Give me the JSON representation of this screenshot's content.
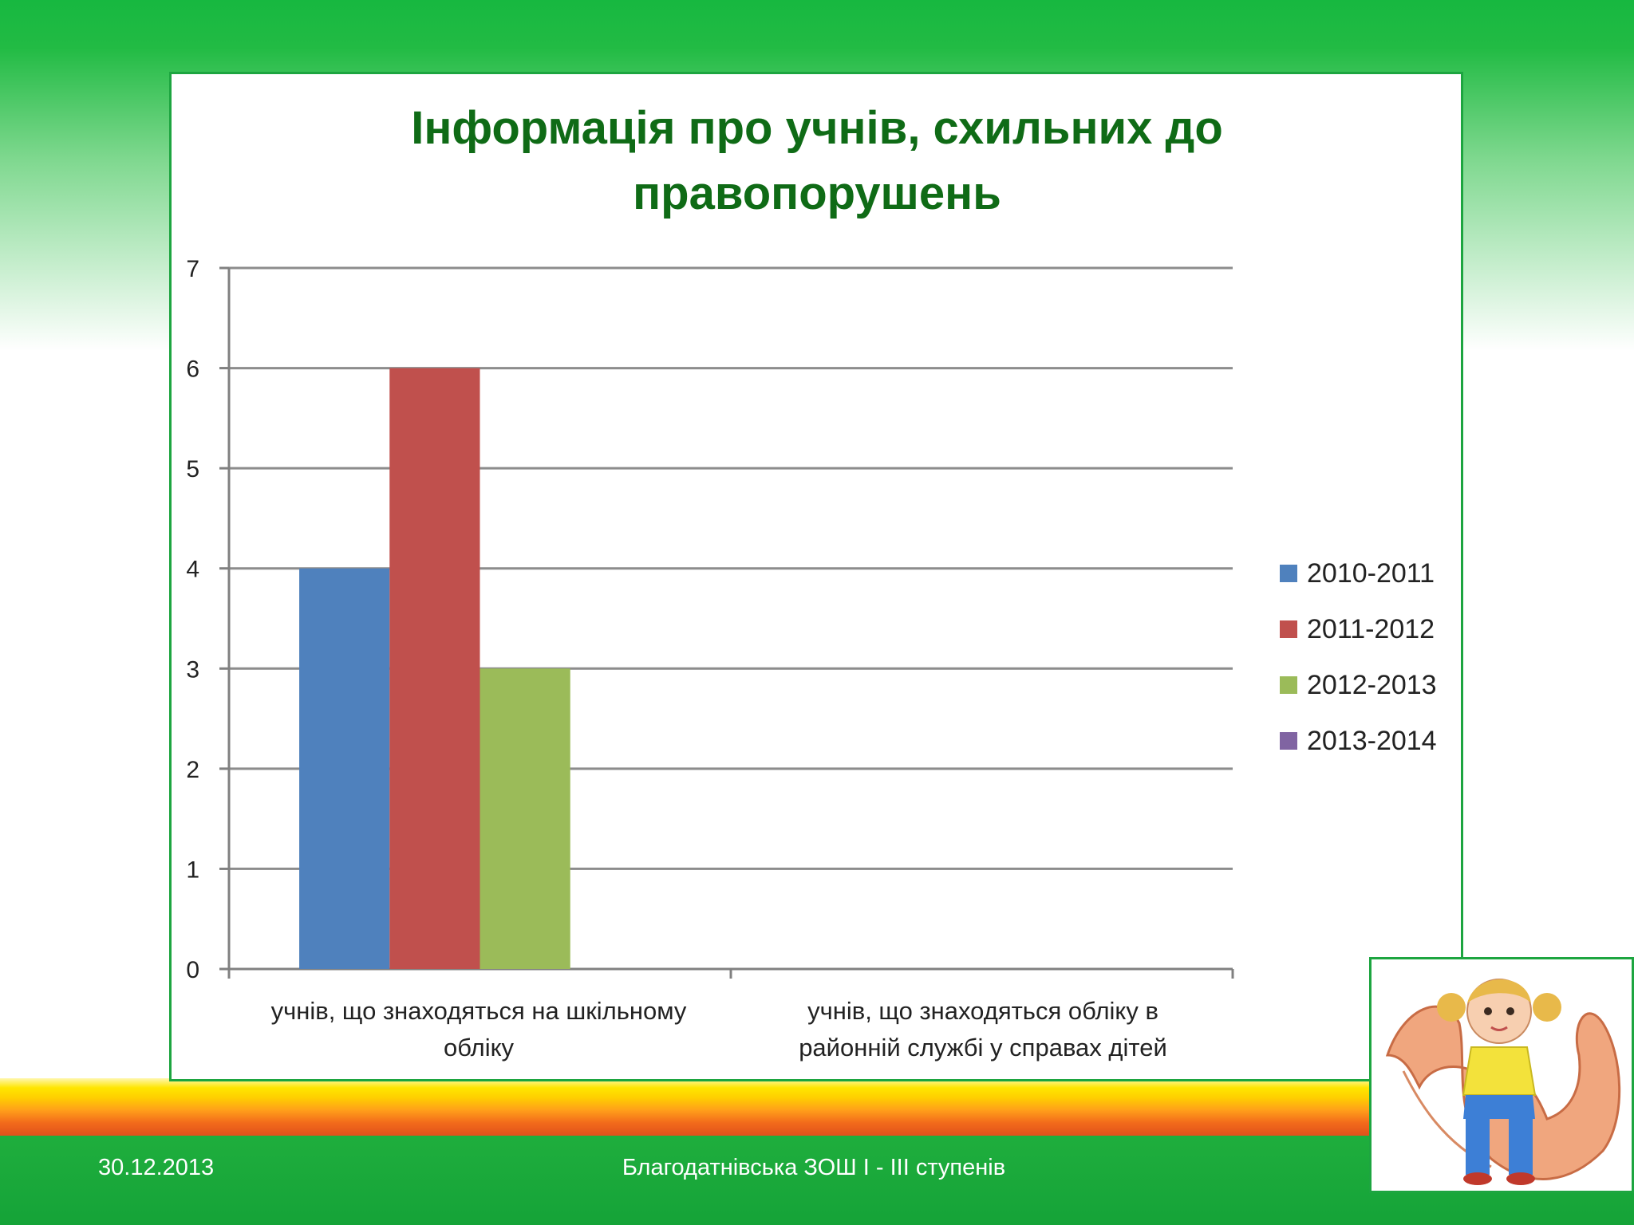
{
  "footer": {
    "date": "30.12.2013",
    "school": "Благодатнівська ЗОШ I - III ступенів"
  },
  "chart_data": {
    "type": "bar",
    "title": "Інформація про учнів, схильних до правопорушень",
    "title_lines": [
      "Інформація про учнів, схильних до",
      "правопорушень"
    ],
    "categories": [
      "учнів, що знаходяться на шкільному обліку",
      "учнів, що знаходяться  обліку в районній службі у справах дітей"
    ],
    "category_lines": [
      [
        "учнів, що знаходяться на шкільному",
        "обліку"
      ],
      [
        "учнів, що знаходяться  обліку в",
        "районній службі у справах дітей"
      ]
    ],
    "series": [
      {
        "name": "2010-2011",
        "color": "#4f81bd",
        "values": [
          4,
          0
        ]
      },
      {
        "name": "2011-2012",
        "color": "#c0504d",
        "values": [
          6,
          0
        ]
      },
      {
        "name": "2012-2013",
        "color": "#9bbb59",
        "values": [
          3,
          0
        ]
      },
      {
        "name": "2013-2014",
        "color": "#8064a2",
        "values": [
          0,
          0
        ]
      }
    ],
    "yticks": [
      "0",
      "1",
      "2",
      "3",
      "4",
      "5",
      "6",
      "7"
    ],
    "ylim": [
      0,
      7
    ],
    "grid": true,
    "legend_position": "right",
    "xlabel": "",
    "ylabel": ""
  },
  "colors": {
    "title": "#0f6b16",
    "frame_border": "#1da540",
    "footer": "#1fae3d"
  },
  "picture": {
    "icon": "girl-in-hands-illustration"
  }
}
